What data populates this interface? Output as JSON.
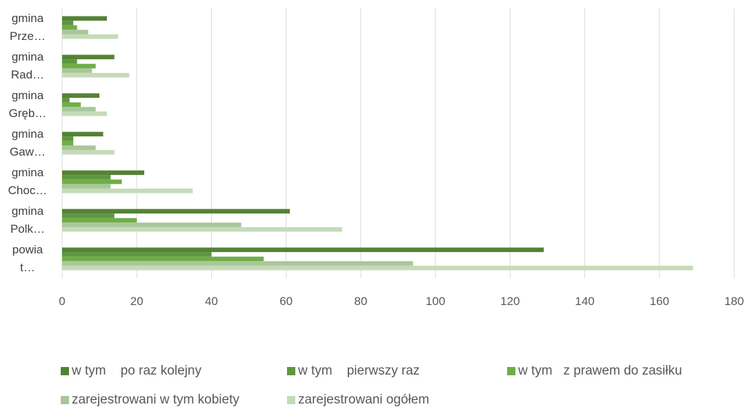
{
  "chart_data": {
    "type": "bar",
    "orientation": "horizontal",
    "categories": [
      [
        "gmina",
        "Prze…"
      ],
      [
        "gmina",
        "Rad…"
      ],
      [
        "gmina",
        "Gręb…"
      ],
      [
        "gmina",
        "Gaw…"
      ],
      [
        "gmina",
        "Choc…"
      ],
      [
        "gmina",
        "Polk…"
      ],
      [
        "powia",
        "t…"
      ]
    ],
    "series": [
      {
        "name": "w tym    po raz kolejny",
        "color": "#548235",
        "values": [
          12,
          14,
          10,
          11,
          22,
          61,
          129
        ]
      },
      {
        "name": "w tym    pierwszy raz",
        "color": "#5e9640",
        "values": [
          3,
          4,
          2,
          3,
          13,
          14,
          40
        ]
      },
      {
        "name": "w tym   z prawem do zasiłku",
        "color": "#70ad47",
        "values": [
          4,
          9,
          5,
          3,
          16,
          20,
          54
        ]
      },
      {
        "name": "zarejestrowani w tym kobiety",
        "color": "#a9c79a",
        "values": [
          7,
          8,
          9,
          9,
          13,
          48,
          94
        ]
      },
      {
        "name": "zarejestrowani ogółem",
        "color": "#c5dbb8",
        "values": [
          15,
          18,
          12,
          14,
          35,
          75,
          169
        ]
      }
    ],
    "xlim": [
      0,
      180
    ],
    "xticks": [
      0,
      20,
      40,
      60,
      80,
      100,
      120,
      140,
      160,
      180
    ],
    "grid": "vertical",
    "legend": "bottom"
  }
}
